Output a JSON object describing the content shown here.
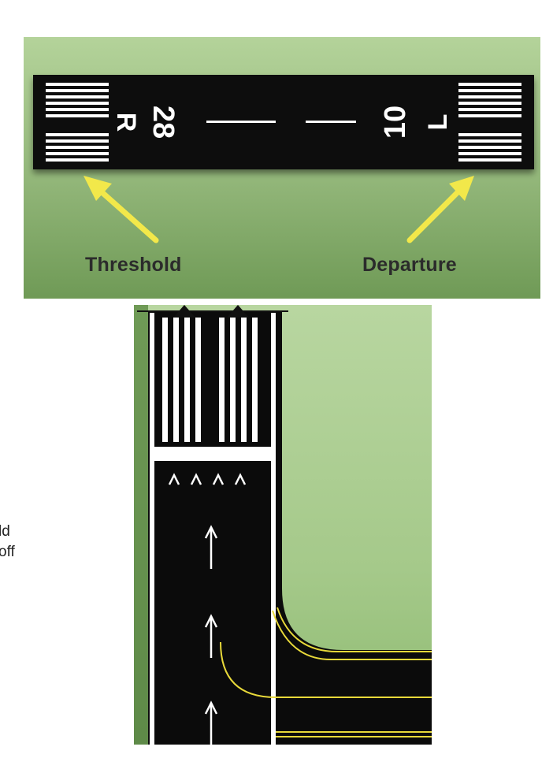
{
  "colors": {
    "grass_top": "#b4d39a",
    "grass_bottom": "#6f9a56",
    "pavement": "#0b0b0b",
    "marking_white": "#ffffff",
    "arrow_yellow": "#f2e84a",
    "taxiway_yellow": "#e8d93a"
  },
  "top_diagram": {
    "left_designator_number": "28",
    "left_designator_letter": "R",
    "right_designator_number": "10",
    "right_designator_letter": "L",
    "threshold_label": "Threshold",
    "departure_label": "Departure"
  },
  "side_text": {
    "line1": "ld",
    "line2": "off"
  },
  "icons": [
    "threshold-arrow-icon",
    "departure-arrow-icon",
    "chevron-arrow-icon",
    "displaced-threshold-arrow-icon"
  ]
}
